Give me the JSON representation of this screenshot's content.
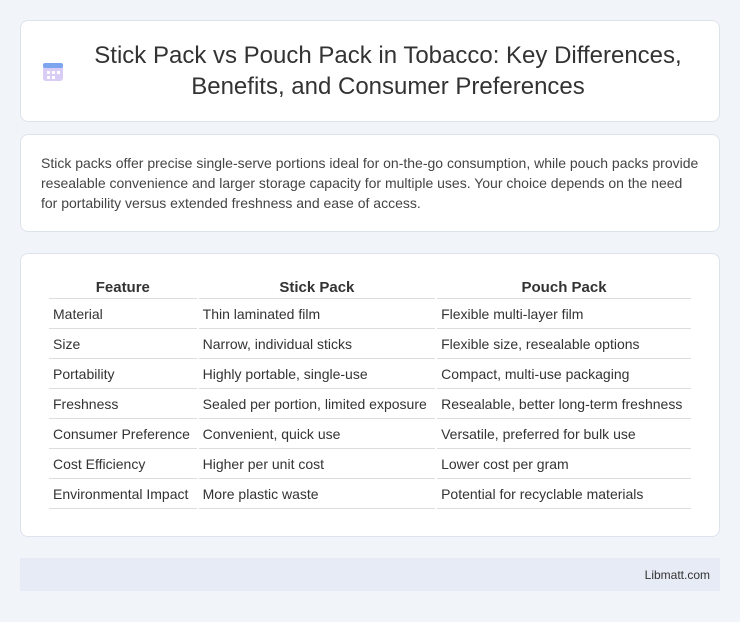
{
  "header": {
    "title": "Stick Pack vs Pouch Pack in Tobacco: Key Differences, Benefits, and Consumer Preferences"
  },
  "summary": "Stick packs offer precise single-serve portions ideal for on-the-go consumption, while pouch packs provide resealable convenience and larger storage capacity for multiple uses. Your choice depends on the need for portability versus extended freshness and ease of access.",
  "table": {
    "headers": [
      "Feature",
      "Stick Pack",
      "Pouch Pack"
    ],
    "rows": [
      [
        "Material",
        "Thin laminated film",
        "Flexible multi-layer film"
      ],
      [
        "Size",
        "Narrow, individual sticks",
        "Flexible size, resealable options"
      ],
      [
        "Portability",
        "Highly portable, single-use",
        "Compact, multi-use packaging"
      ],
      [
        "Freshness",
        "Sealed per portion, limited exposure",
        "Resealable, better long-term freshness"
      ],
      [
        "Consumer Preference",
        "Convenient, quick use",
        "Versatile, preferred for bulk use"
      ],
      [
        "Cost Efficiency",
        "Higher per unit cost",
        "Lower cost per gram"
      ],
      [
        "Environmental Impact",
        "More plastic waste",
        "Potential for recyclable materials"
      ]
    ]
  },
  "footer": {
    "source": "Libmatt.com"
  }
}
